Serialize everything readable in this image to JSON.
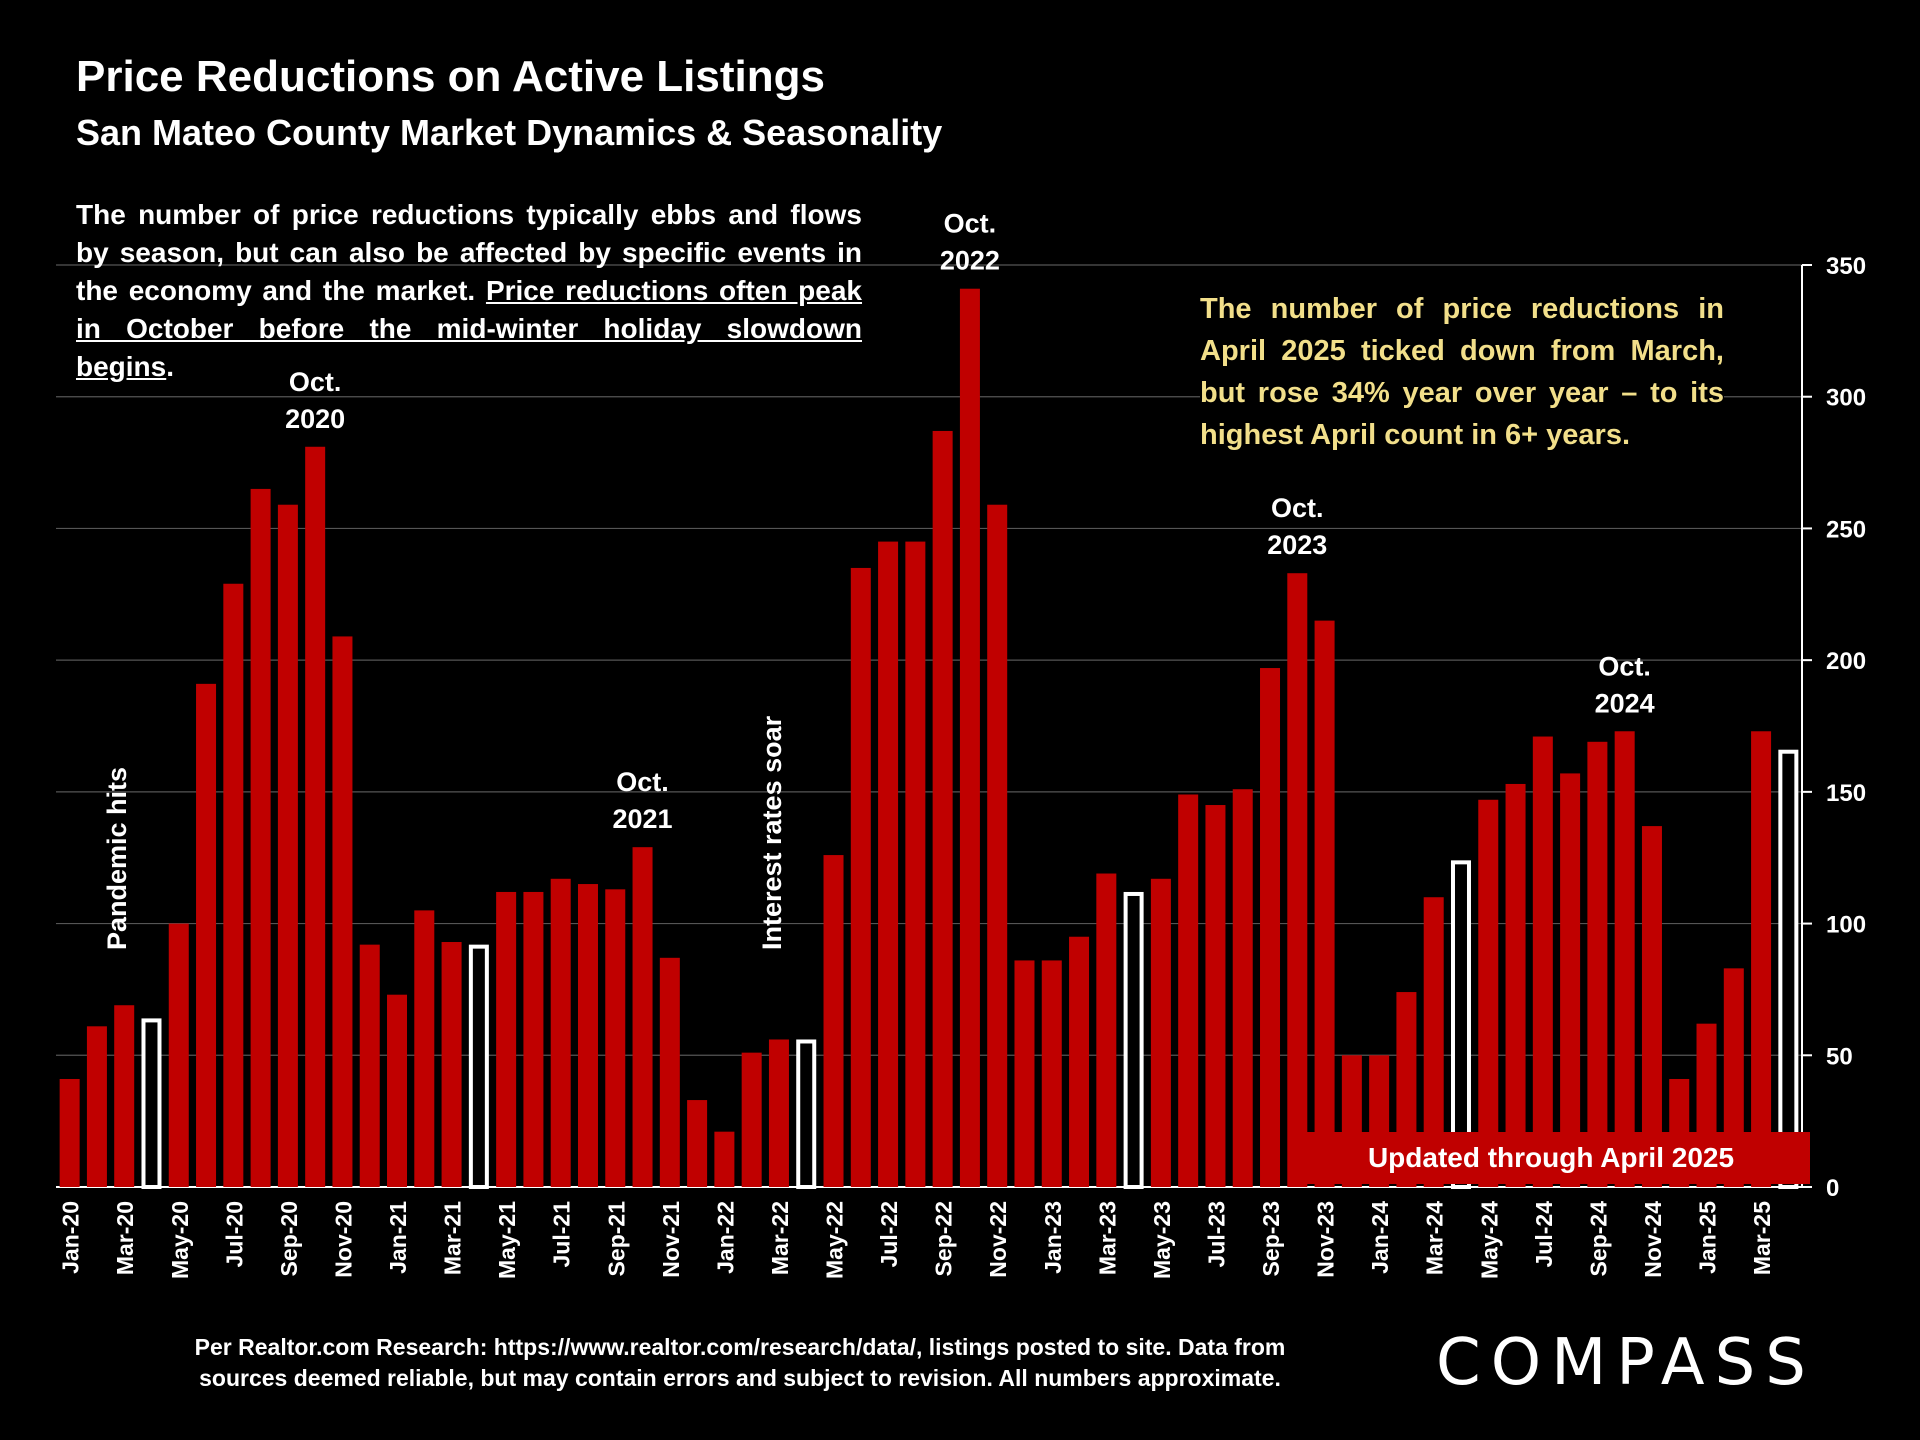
{
  "title": "Price Reductions on Active Listings",
  "subtitle": "San Mateo County Market Dynamics & Seasonality",
  "description": {
    "plain": "The number of price reductions typically ebbs and flows by season, but can also be affected by specific events in the economy and the market. ",
    "underlined": "Price reductions often peak in October before the mid-winter holiday slowdown begins",
    "end": "."
  },
  "callout": "The number of price reductions in April 2025 ticked down from March, but rose 34% year over year – to its highest April count in 6+ years.",
  "updated_label": "Updated through April 2025",
  "footer": {
    "line1": "Per Realtor.com Research:  https://www.realtor.com/research/data/, listings posted to site. Data from",
    "line2": "sources deemed reliable, but may contain errors and subject to revision. All numbers approximate."
  },
  "logo": "COMPASS",
  "chart_data": {
    "type": "bar",
    "ylim": [
      0,
      350
    ],
    "yticks": [
      0,
      50,
      100,
      150,
      200,
      250,
      300,
      350
    ],
    "grid": true,
    "colors": {
      "bar": "#c00000",
      "april_bar": "#ffffff",
      "gold_text": "#f2df8a"
    },
    "categories": [
      "Jan-20",
      "Feb-20",
      "Mar-20",
      "Apr-20",
      "May-20",
      "Jun-20",
      "Jul-20",
      "Aug-20",
      "Sep-20",
      "Oct-20",
      "Nov-20",
      "Dec-20",
      "Jan-21",
      "Feb-21",
      "Mar-21",
      "Apr-21",
      "May-21",
      "Jun-21",
      "Jul-21",
      "Aug-21",
      "Sep-21",
      "Oct-21",
      "Nov-21",
      "Dec-21",
      "Jan-22",
      "Feb-22",
      "Mar-22",
      "Apr-22",
      "May-22",
      "Jun-22",
      "Jul-22",
      "Aug-22",
      "Sep-22",
      "Oct-22",
      "Nov-22",
      "Dec-22",
      "Jan-23",
      "Feb-23",
      "Mar-23",
      "Apr-23",
      "May-23",
      "Jun-23",
      "Jul-23",
      "Aug-23",
      "Sep-23",
      "Oct-23",
      "Nov-23",
      "Dec-23",
      "Jan-24",
      "Feb-24",
      "Mar-24",
      "Apr-24",
      "May-24",
      "Jun-24",
      "Jul-24",
      "Aug-24",
      "Sep-24",
      "Oct-24",
      "Nov-24",
      "Dec-24",
      "Jan-25",
      "Feb-25",
      "Mar-25",
      "Apr-25"
    ],
    "tick_labels": [
      "Jan-20",
      "Mar-20",
      "May-20",
      "Jul-20",
      "Sep-20",
      "Nov-20",
      "Jan-21",
      "Mar-21",
      "May-21",
      "Jul-21",
      "Sep-21",
      "Nov-21",
      "Jan-22",
      "Mar-22",
      "May-22",
      "Jul-22",
      "Sep-22",
      "Nov-22",
      "Jan-23",
      "Mar-23",
      "May-23",
      "Jul-23",
      "Sep-23",
      "Nov-23",
      "Jan-24",
      "Mar-24",
      "May-24",
      "Jul-24",
      "Sep-24",
      "Nov-24",
      "Jan-25",
      "Mar-25"
    ],
    "values": [
      41,
      61,
      69,
      64,
      100,
      191,
      229,
      265,
      259,
      281,
      209,
      92,
      73,
      105,
      93,
      92,
      112,
      112,
      117,
      115,
      113,
      129,
      87,
      33,
      21,
      51,
      56,
      56,
      126,
      235,
      245,
      245,
      287,
      341,
      259,
      86,
      86,
      95,
      119,
      112,
      117,
      149,
      145,
      151,
      197,
      233,
      215,
      50,
      50,
      74,
      110,
      124,
      147,
      153,
      171,
      157,
      169,
      173,
      137,
      41,
      62,
      83,
      173,
      166
    ],
    "highlight_months": [
      "Apr-20",
      "Apr-21",
      "Apr-22",
      "Apr-23",
      "Apr-24",
      "Apr-25"
    ],
    "annotations": [
      {
        "category": "Oct-20",
        "text": "Oct.|2020"
      },
      {
        "category": "Oct-21",
        "text": "Oct.|2021"
      },
      {
        "category": "Oct-22",
        "text": "Oct.|2022"
      },
      {
        "category": "Oct-23",
        "text": "Oct.|2023"
      },
      {
        "category": "Oct-24",
        "text": "Oct.|2024"
      }
    ],
    "vertical_notes": [
      {
        "category": "Mar-20",
        "text": "Pandemic hits"
      },
      {
        "category": "Mar-22",
        "text": "Interest rates soar"
      }
    ]
  }
}
